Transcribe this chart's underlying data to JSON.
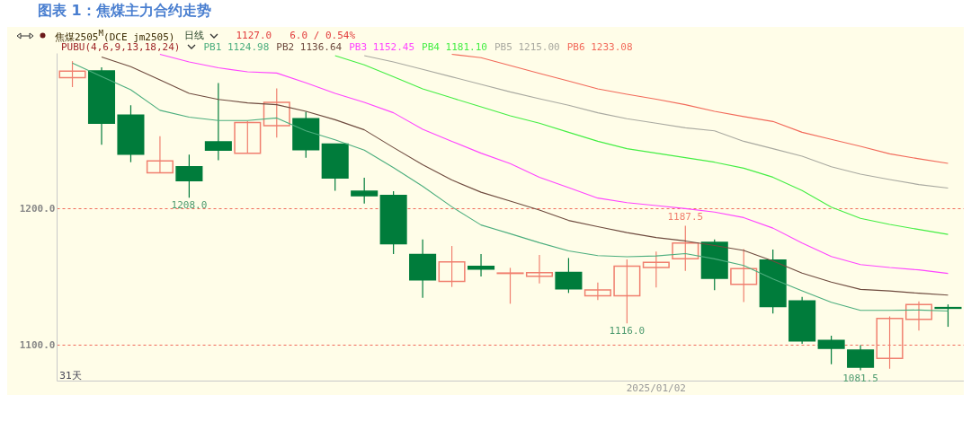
{
  "chart_data": {
    "type": "candlestick",
    "title": "图表 1：焦煤主力合约走势",
    "categories": [
      null,
      null,
      null,
      null,
      null,
      null,
      null,
      null,
      null,
      null,
      null,
      null,
      null,
      null,
      null,
      null,
      null,
      null,
      null,
      null,
      "2025/01/02",
      null,
      null,
      null,
      null,
      null,
      null,
      null,
      null,
      null,
      null
    ],
    "ohlc": [
      [
        1296,
        1308,
        1289,
        1300.7
      ],
      [
        1300.9,
        1303.5,
        1246.7,
        1262.5
      ],
      [
        1268.4,
        1275.7,
        1234,
        1239.9
      ],
      [
        1226.3,
        1253,
        1226.3,
        1235
      ],
      [
        1230.7,
        1239.5,
        1208,
        1220.4
      ],
      [
        1248.9,
        1292,
        1235.5,
        1242.8
      ],
      [
        1240.6,
        1264,
        1240.6,
        1263
      ],
      [
        1260.7,
        1288,
        1252,
        1277.8
      ],
      [
        1265.8,
        1271,
        1237.3,
        1243.2
      ],
      [
        1247.2,
        1247.2,
        1213,
        1222.4
      ],
      [
        1212.7,
        1222.6,
        1203.7,
        1209.4
      ],
      [
        1209.6,
        1212.7,
        1166.7,
        1174.3
      ],
      [
        1166.4,
        1177.4,
        1134.7,
        1147.8
      ],
      [
        1146.7,
        1172.6,
        1142.6,
        1161
      ],
      [
        1157.7,
        1166.7,
        1150.2,
        1155.7
      ],
      [
        1152.5,
        1156.6,
        1130.3,
        1152.8
      ],
      [
        1150.4,
        1166,
        1145.2,
        1153
      ],
      [
        1153.3,
        1163.8,
        1138.2,
        1141.2
      ],
      [
        1136.2,
        1145.9,
        1133,
        1140.4
      ],
      [
        1136.2,
        1162.7,
        1116,
        1157.9
      ],
      [
        1156.8,
        1168.6,
        1142.3,
        1160.7
      ],
      [
        1163.2,
        1187.5,
        1154.4,
        1174.8
      ],
      [
        1175.2,
        1177.4,
        1140.3,
        1148.9
      ],
      [
        1144.5,
        1170.4,
        1131.6,
        1156.1
      ],
      [
        1162.3,
        1170,
        1123.2,
        1128.3
      ],
      [
        1132.4,
        1135.3,
        1101,
        1103.1
      ],
      [
        1103.5,
        1106.8,
        1086,
        1097.6
      ],
      [
        1096.3,
        1100,
        1081.5,
        1083.8
      ],
      [
        1090.3,
        1121,
        1082.7,
        1119.5
      ],
      [
        1118.9,
        1132,
        1110.7,
        1129.8
      ],
      [
        1127.5,
        1129.8,
        1113.4,
        1127
      ]
    ],
    "colors": [
      "#f07f6e",
      "#007c3b",
      "#007c3b",
      "#f07f6e",
      "#007c3b",
      "#007c3b",
      "#f07f6e",
      "#f07f6e",
      "#007c3b",
      "#007c3b",
      "#007c3b",
      "#007c3b",
      "#007c3b",
      "#f07f6e",
      "#007c3b",
      "#f07f6e",
      "#f07f6e",
      "#007c3b",
      "#f07f6e",
      "#f07f6e",
      "#f07f6e",
      "#f07f6e",
      "#007c3b",
      "#f07f6e",
      "#007c3b",
      "#007c3b",
      "#007c3b",
      "#007c3b",
      "#f07f6e",
      "#f07f6e",
      "#007c3b"
    ],
    "series": [
      {
        "name": "PB1 1124.98",
        "type": "line",
        "color": "#4cae7e",
        "values": [
          1306.6,
          1296.7,
          1287,
          1272,
          1267,
          1264.5,
          1264.5,
          1266.4,
          1257,
          1250.4,
          1242.8,
          1230,
          1216.4,
          1201.3,
          1188,
          1181.6,
          1175,
          1169,
          1165.6,
          1164.7,
          1165.3,
          1167,
          1163.2,
          1158.3,
          1148.5,
          1139.7,
          1131.4,
          1125.5,
          1125.5,
          1125.7,
          1125
        ]
      },
      {
        "name": "PB2 1136.64",
        "type": "line",
        "color": "#6e4a3e",
        "values": [
          null,
          1311,
          1304,
          1294.3,
          1284.4,
          1280,
          1277.4,
          1276.1,
          1271.3,
          1265.1,
          1257.7,
          1244.7,
          1232.2,
          1220.9,
          1212,
          1205.5,
          1198.9,
          1191.3,
          1186.8,
          1182.4,
          1178.8,
          1176.3,
          1173,
          1169.3,
          1161.6,
          1152.8,
          1146.2,
          1140.8,
          1139.7,
          1138,
          1136.6
        ]
      },
      {
        "name": "PB3 1152.45",
        "type": "line",
        "color": "#ff44ff",
        "values": [
          null,
          null,
          null,
          1313,
          1307.4,
          1303.1,
          1300.2,
          1299.3,
          1292.1,
          1284.4,
          1277.8,
          1270.2,
          1258.1,
          1249.3,
          1240.6,
          1232.9,
          1223,
          1215.3,
          1207.7,
          1204.4,
          1202.2,
          1200,
          1197.4,
          1193.4,
          1185.7,
          1174.8,
          1164.9,
          1159,
          1156.8,
          1155.1,
          1152.5
        ]
      },
      {
        "name": "PB4 1181.10",
        "type": "line",
        "color": "#44ee44",
        "values": [
          null,
          null,
          null,
          null,
          null,
          null,
          null,
          null,
          null,
          1312,
          1305.3,
          1296.5,
          1287.7,
          1281.1,
          1274.5,
          1268,
          1262.5,
          1255.9,
          1249.3,
          1243.9,
          1240.6,
          1237.3,
          1234,
          1229.6,
          1223,
          1213.2,
          1201.1,
          1192.8,
          1188.4,
          1184.7,
          1181.1
        ]
      },
      {
        "name": "PB5 1215.00",
        "type": "line",
        "color": "#a9a9a0",
        "values": [
          null,
          null,
          null,
          null,
          null,
          null,
          null,
          null,
          null,
          null,
          1312,
          1307.4,
          1302,
          1296.5,
          1291,
          1285.5,
          1280.5,
          1275.7,
          1270.2,
          1265.8,
          1262.5,
          1259.2,
          1257,
          1249.3,
          1243.9,
          1238.4,
          1230.7,
          1225.2,
          1221.3,
          1217.6,
          1215
        ]
      },
      {
        "name": "PB6 1233.08",
        "type": "line",
        "color": "#f26a5a",
        "values": [
          null,
          null,
          null,
          null,
          null,
          null,
          null,
          null,
          null,
          null,
          null,
          null,
          null,
          1313,
          1310.5,
          1304.8,
          1299.1,
          1293.4,
          1287.7,
          1283.8,
          1280.1,
          1276.1,
          1271.3,
          1267.4,
          1263.8,
          1255.9,
          1250.7,
          1245.6,
          1240.1,
          1236.5,
          1233.1
        ]
      }
    ],
    "ylim": [
      1074,
      1314
    ],
    "yticks": [
      {
        "value": 1100,
        "label": "1100.0"
      },
      {
        "value": 1200,
        "label": "1200.0"
      }
    ],
    "grid": "y",
    "legend": "top left",
    "annotations": [
      "焦煤2505$^{M}$(DCE jm2505)",
      "日线",
      "1127.0",
      "6.0 / 0.54%",
      "PUBU(4,6,9,13,18,24)",
      "31天",
      {
        "text": "1208.0",
        "y": 1208
      },
      {
        "text": "1116.0",
        "y": 1116
      },
      {
        "text": "1187.5",
        "y": 1187.5
      },
      {
        "text": "1081.5",
        "y": 1081.5
      }
    ]
  }
}
